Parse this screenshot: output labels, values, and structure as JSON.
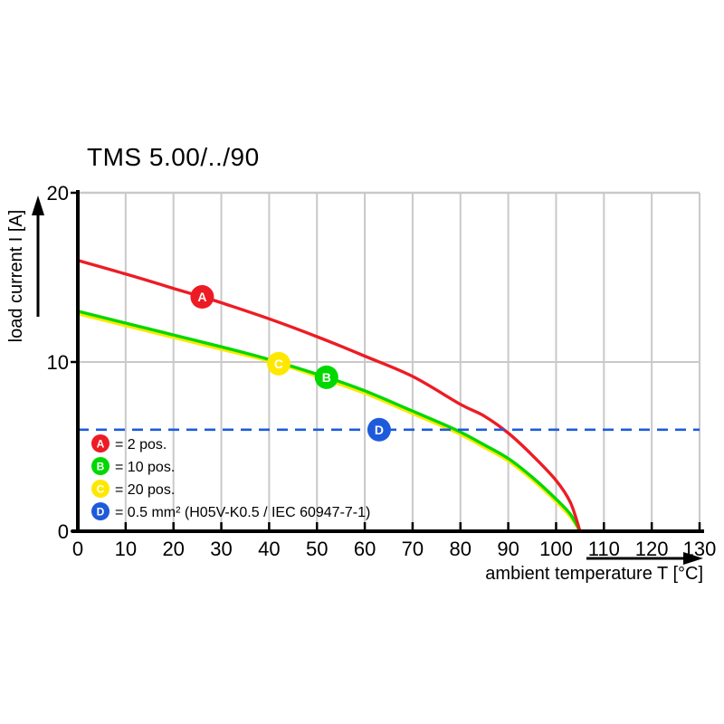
{
  "chart_data": {
    "type": "line",
    "title": "TMS 5.00/../90",
    "xlabel": "ambient temperature T [°C]",
    "ylabel": "load current I [A]",
    "xlim": [
      0,
      130
    ],
    "ylim": [
      0,
      20
    ],
    "x_ticks": [
      0,
      10,
      20,
      30,
      40,
      50,
      60,
      70,
      80,
      90,
      100,
      110,
      120,
      130
    ],
    "y_ticks": [
      0,
      10,
      20
    ],
    "grid": "on",
    "series": [
      {
        "name": "C",
        "label": "20 pos.",
        "color": "#ffe800",
        "points": [
          [
            0,
            12.85
          ],
          [
            10,
            12.15
          ],
          [
            20,
            11.45
          ],
          [
            30,
            10.75
          ],
          [
            42,
            9.9
          ],
          [
            52,
            8.95
          ],
          [
            60,
            8.15
          ],
          [
            70,
            6.95
          ],
          [
            79,
            5.85
          ],
          [
            85,
            4.95
          ],
          [
            90,
            4.15
          ],
          [
            95,
            3.05
          ],
          [
            100,
            1.75
          ],
          [
            103,
            0.85
          ],
          [
            105,
            0
          ]
        ]
      },
      {
        "name": "B",
        "label": "10 pos.",
        "color": "#00d800",
        "points": [
          [
            0,
            13.0
          ],
          [
            10,
            12.3
          ],
          [
            20,
            11.6
          ],
          [
            30,
            10.9
          ],
          [
            40,
            10.15
          ],
          [
            52,
            9.1
          ],
          [
            60,
            8.3
          ],
          [
            70,
            7.1
          ],
          [
            79,
            6.0
          ],
          [
            85,
            5.1
          ],
          [
            90,
            4.3
          ],
          [
            95,
            3.2
          ],
          [
            100,
            1.9
          ],
          [
            103,
            1.0
          ],
          [
            105,
            0
          ]
        ]
      },
      {
        "name": "A",
        "label": "2 pos.",
        "color": "#ed1c24",
        "points": [
          [
            0,
            16.0
          ],
          [
            10,
            15.2
          ],
          [
            20,
            14.35
          ],
          [
            26,
            13.85
          ],
          [
            30,
            13.5
          ],
          [
            40,
            12.55
          ],
          [
            50,
            11.5
          ],
          [
            60,
            10.35
          ],
          [
            70,
            9.15
          ],
          [
            80,
            7.5
          ],
          [
            85,
            6.8
          ],
          [
            90,
            5.8
          ],
          [
            95,
            4.5
          ],
          [
            100,
            3.0
          ],
          [
            103,
            1.7
          ],
          [
            105,
            0
          ]
        ]
      },
      {
        "name": "D",
        "label": "0.5 mm² (H05V-K0.5 / IEC 60947-7-1)",
        "color": "#1d5bdb",
        "style": "dashed-horizontal",
        "value": 6
      }
    ],
    "markers": [
      {
        "letter": "A",
        "color": "#ed1c24",
        "x": 26,
        "y": 13.85
      },
      {
        "letter": "C",
        "color": "#ffe800",
        "x": 42,
        "y": 9.9
      },
      {
        "letter": "B",
        "color": "#00d800",
        "x": 52,
        "y": 9.1
      },
      {
        "letter": "D",
        "color": "#1d5bdb",
        "x": 63,
        "y": 6
      }
    ],
    "legend": [
      {
        "letter": "A",
        "color": "#ed1c24",
        "text": "= 2 pos."
      },
      {
        "letter": "B",
        "color": "#00d800",
        "text": "= 10 pos."
      },
      {
        "letter": "C",
        "color": "#ffe800",
        "text": "= 20 pos."
      },
      {
        "letter": "D",
        "color": "#1d5bdb",
        "text": "= 0.5 mm² (H05V-K0.5 / IEC 60947-7-1)"
      }
    ],
    "colors": {
      "axis": "#000000",
      "grid": "#c9c9c9",
      "background": "#ffffff",
      "marker_letter": "#ffffff"
    },
    "legend_position": "bottom-left-inside"
  }
}
